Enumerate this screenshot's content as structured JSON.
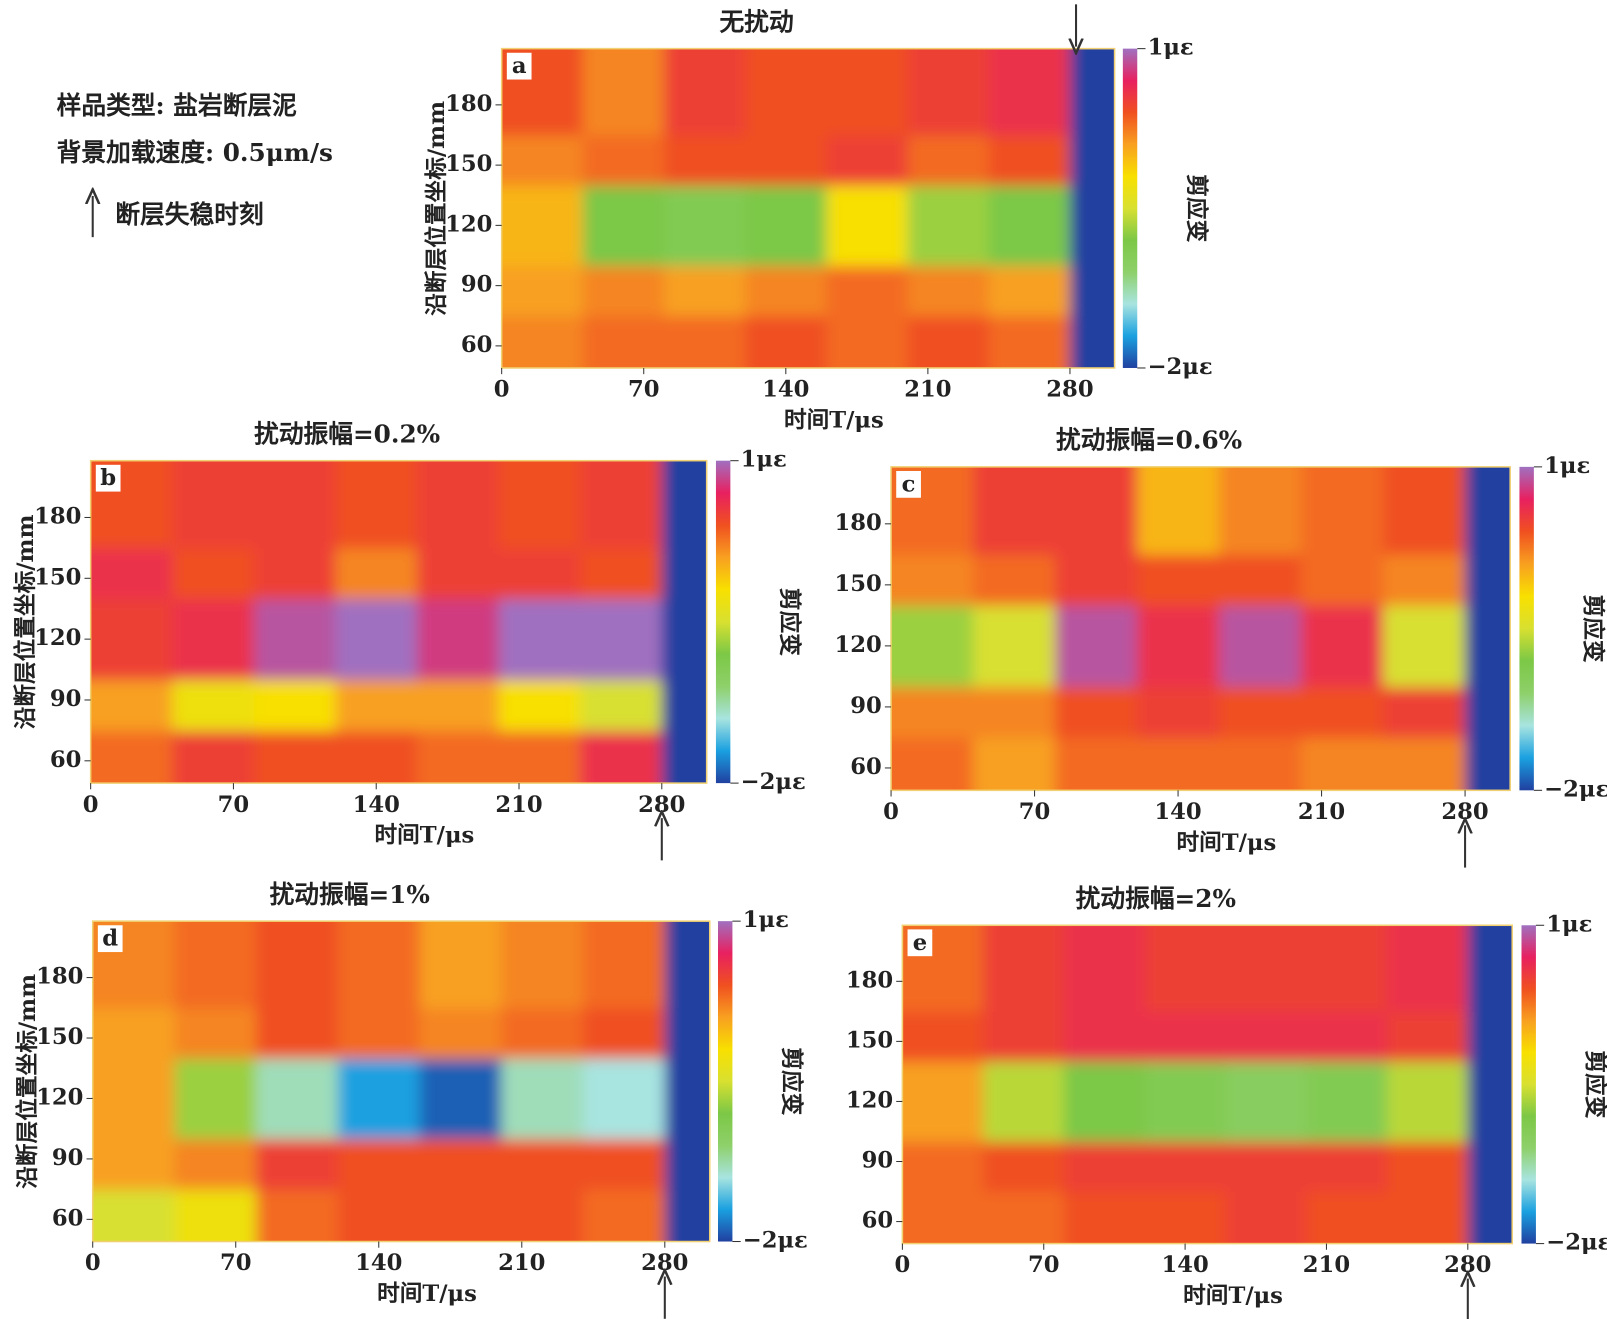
{
  "legend": {
    "sample": "样品类型: 盐岩断层泥",
    "rate": "背景加载速度: 0.5μm/s",
    "arrow": "断层失稳时刻"
  },
  "colorscale": [
    "#2040a0",
    "#1aa0e0",
    "#a8e4e0",
    "#8ed06a",
    "#7cc846",
    "#d8e030",
    "#f8e000",
    "#f8a020",
    "#f05020",
    "#e82060",
    "#a070c0"
  ],
  "chart_data": [
    {
      "type": "heatmap",
      "label": "a",
      "title": "无扰动",
      "xlabel": "时间T/μs",
      "ylabel": "沿断层位置坐标/mm",
      "colorbar_label": "剪应变",
      "xlim": [
        0,
        302
      ],
      "ylim": [
        49,
        208
      ],
      "xticks": [
        0,
        70,
        140,
        210,
        280
      ],
      "yticks": [
        60,
        90,
        120,
        150,
        180
      ],
      "zlim": [
        -2,
        1
      ],
      "zticks": [
        {
          "value": 1,
          "label": "1με"
        },
        {
          "value": -2,
          "label": "−2με"
        }
      ],
      "instability_time": 283,
      "arrow": "top",
      "xbins": [
        0,
        40,
        80,
        120,
        160,
        200,
        240,
        280,
        302
      ],
      "ybins": [
        49,
        75,
        100,
        140,
        165,
        208
      ],
      "z": [
        [
          0.2,
          0.3,
          0.3,
          0.4,
          0.3,
          0.4,
          0.3,
          -2
        ],
        [
          0.1,
          0.2,
          0.1,
          0.2,
          0.3,
          0.2,
          0.1,
          -2
        ],
        [
          0.0,
          -0.8,
          -0.9,
          -0.8,
          -0.2,
          -0.7,
          -0.8,
          -2
        ],
        [
          0.2,
          0.3,
          0.4,
          0.4,
          0.5,
          0.3,
          0.4,
          -2
        ],
        [
          0.4,
          0.2,
          0.5,
          0.4,
          0.4,
          0.5,
          0.6,
          -2
        ]
      ]
    },
    {
      "type": "heatmap",
      "label": "b",
      "title": "扰动振幅=0.2%",
      "xlabel": "时间T/μs",
      "ylabel": "沿断层位置坐标/mm",
      "colorbar_label": "剪应变",
      "xlim": [
        0,
        302
      ],
      "ylim": [
        49,
        208
      ],
      "xticks": [
        0,
        70,
        140,
        210,
        280
      ],
      "yticks": [
        60,
        90,
        120,
        150,
        180
      ],
      "zlim": [
        -2,
        1
      ],
      "zticks": [
        {
          "value": 1,
          "label": "1με"
        },
        {
          "value": -2,
          "label": "−2με"
        }
      ],
      "instability_time": 280,
      "arrow": "bottom",
      "xbins": [
        0,
        40,
        80,
        120,
        160,
        200,
        240,
        280,
        302
      ],
      "ybins": [
        49,
        75,
        100,
        140,
        165,
        208
      ],
      "z": [
        [
          0.3,
          0.5,
          0.4,
          0.4,
          0.3,
          0.3,
          0.6,
          -2
        ],
        [
          0.1,
          -0.3,
          -0.2,
          0.1,
          0.1,
          -0.2,
          -0.5,
          -2
        ],
        [
          0.5,
          0.6,
          0.9,
          1.0,
          0.8,
          1.0,
          1.0,
          -2
        ],
        [
          0.6,
          0.4,
          0.5,
          0.2,
          0.5,
          0.5,
          0.4,
          -2
        ],
        [
          0.4,
          0.5,
          0.5,
          0.4,
          0.5,
          0.4,
          0.5,
          -2
        ]
      ]
    },
    {
      "type": "heatmap",
      "label": "c",
      "title": "扰动振幅=0.6%",
      "xlabel": "时间T/μs",
      "colorbar_label": "剪应变",
      "xlim": [
        0,
        302
      ],
      "ylim": [
        49,
        208
      ],
      "xticks": [
        0,
        70,
        140,
        210,
        280
      ],
      "yticks": [
        60,
        90,
        120,
        150,
        180
      ],
      "zlim": [
        -2,
        1
      ],
      "zticks": [
        {
          "value": 1,
          "label": "1με"
        },
        {
          "value": -2,
          "label": "−2με"
        }
      ],
      "instability_time": 280,
      "arrow": "bottom",
      "xbins": [
        0,
        40,
        80,
        120,
        160,
        200,
        240,
        280,
        302
      ],
      "ybins": [
        49,
        75,
        100,
        140,
        165,
        208
      ],
      "z": [
        [
          0.3,
          0.1,
          0.3,
          0.3,
          0.3,
          0.2,
          0.2,
          -2
        ],
        [
          0.2,
          0.2,
          0.4,
          0.5,
          0.4,
          0.4,
          0.5,
          -2
        ],
        [
          -0.7,
          -0.5,
          0.9,
          0.6,
          0.9,
          0.6,
          -0.5,
          -2
        ],
        [
          0.2,
          0.3,
          0.5,
          0.4,
          0.4,
          0.3,
          0.2,
          -2
        ],
        [
          0.3,
          0.5,
          0.5,
          0.0,
          0.2,
          0.3,
          0.4,
          -2
        ]
      ]
    },
    {
      "type": "heatmap",
      "label": "d",
      "title": "扰动振幅=1%",
      "xlabel": "时间T/μs",
      "ylabel": "沿断层位置坐标/mm",
      "colorbar_label": "剪应变",
      "xlim": [
        0,
        302
      ],
      "ylim": [
        49,
        208
      ],
      "xticks": [
        0,
        70,
        140,
        210,
        280
      ],
      "yticks": [
        60,
        90,
        120,
        150,
        180
      ],
      "zlim": [
        -2,
        1
      ],
      "zticks": [
        {
          "value": 1,
          "label": "1με"
        },
        {
          "value": -2,
          "label": "−2με"
        }
      ],
      "instability_time": 280,
      "arrow": "bottom",
      "xbins": [
        0,
        40,
        80,
        120,
        160,
        200,
        240,
        280,
        302
      ],
      "ybins": [
        49,
        75,
        100,
        140,
        165,
        208
      ],
      "z": [
        [
          -0.5,
          -0.3,
          0.3,
          0.4,
          0.4,
          0.4,
          0.3,
          -2
        ],
        [
          0.1,
          0.2,
          0.5,
          0.4,
          0.4,
          0.4,
          0.4,
          -2
        ],
        [
          0.1,
          -0.7,
          -1.3,
          -1.7,
          -1.9,
          -1.3,
          -1.4,
          -2
        ],
        [
          0.1,
          0.2,
          0.4,
          0.3,
          0.2,
          0.3,
          0.4,
          -2
        ],
        [
          0.2,
          0.3,
          0.4,
          0.3,
          0.1,
          0.2,
          0.3,
          -2
        ]
      ]
    },
    {
      "type": "heatmap",
      "label": "e",
      "title": "扰动振幅=2%",
      "xlabel": "时间T/μs",
      "colorbar_label": "剪应变",
      "xlim": [
        0,
        302
      ],
      "ylim": [
        49,
        208
      ],
      "xticks": [
        0,
        70,
        140,
        210,
        280
      ],
      "yticks": [
        60,
        90,
        120,
        150,
        180
      ],
      "zlim": [
        -2,
        1
      ],
      "zticks": [
        {
          "value": 1,
          "label": "1με"
        },
        {
          "value": -2,
          "label": "−2με"
        }
      ],
      "instability_time": 280,
      "arrow": "bottom",
      "xbins": [
        0,
        40,
        80,
        120,
        160,
        200,
        240,
        280,
        302
      ],
      "ybins": [
        49,
        75,
        100,
        140,
        165,
        208
      ],
      "z": [
        [
          0.3,
          0.3,
          0.4,
          0.4,
          0.5,
          0.4,
          0.4,
          -2
        ],
        [
          0.3,
          0.4,
          0.5,
          0.5,
          0.5,
          0.5,
          0.4,
          -2
        ],
        [
          0.1,
          -0.6,
          -0.8,
          -0.9,
          -1.0,
          -0.9,
          -0.6,
          -2
        ],
        [
          0.4,
          0.5,
          0.6,
          0.6,
          0.6,
          0.6,
          0.5,
          -2
        ],
        [
          0.3,
          0.5,
          0.6,
          0.5,
          0.5,
          0.5,
          0.6,
          -2
        ]
      ]
    }
  ]
}
